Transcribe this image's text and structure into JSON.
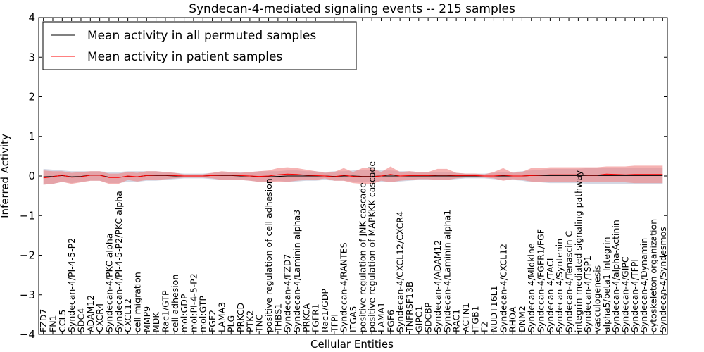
{
  "chart_data": {
    "type": "line",
    "title": "Syndecan-4-mediated signaling events -- 215 samples",
    "xlabel": "Cellular Entities",
    "ylabel": "Inferred Activity",
    "ylim": [
      -4,
      4
    ],
    "yticks": [
      4,
      3,
      2,
      1,
      0,
      -1,
      -2,
      -3,
      -4
    ],
    "ytick_labels": [
      "4",
      "3",
      "2",
      "1",
      "0",
      "−1",
      "−2",
      "−3",
      "−4"
    ],
    "legend_position": "top-left",
    "categories": [
      "FZD7",
      "FN1",
      "CCL5",
      "Syndecan-4/PI-4-5-P2",
      "SDC4",
      "ADAM12",
      "CXCR4",
      "Syndecan-4/PKC alpha",
      "Syndecan-4/PI-4-5-P2/PKC alpha",
      "CXCL12",
      "cell migration",
      "MMP9",
      "MDK",
      "Rac1/GTP",
      "cell adhesion",
      "mol:GDP",
      "mol:PI-4-5-P2",
      "mol:GTP",
      "FGF2",
      "LAMA3",
      "PLG",
      "PRKCD",
      "PTK2",
      "TNC",
      "positive regulation of cell adhesion",
      "THBS1",
      "Syndecan-4/FZD7",
      "Syndecan-4/Laminin alpha3",
      "PRKCA",
      "FGFR1",
      "Rac1/GDP",
      "TFPI",
      "Syndecan-4/RANTES",
      "ITGA5",
      "positive regulation of JNK cascade",
      "positive regulation of MAPKKK cascade",
      "LAMA1",
      "FGF6",
      "Syndecan-4/CXCL12/CXCR4",
      "TNFRSF13B",
      "GIPC1",
      "SDCBP",
      "Syndecan-4/ADAM12",
      "Syndecan-4/Laminin alpha1",
      "RAC1",
      "ACTN1",
      "ITGB1",
      "F2",
      "NUDT16L1",
      "Syndecan-4/CXCL12",
      "RHOA",
      "DNM2",
      "Syndecan-4/Midkine",
      "Syndecan-4/FGFR1/FGF",
      "Syndecan-4/TACI",
      "Syndecan-4/Syntenin",
      "Syndecan-4/Tenascin C",
      "integrin-mediated signaling pathway",
      "Syndecan-4/TSP1",
      "vasculogenesis",
      "alpha5/beta1 Integrin",
      "Syndecan-4/alpha-Actinin",
      "Syndecan-4/GIPC",
      "Syndecan-4/TFPI",
      "Syndecan-4/Dynamin",
      "cytoskeleton organization",
      "Syndecan-4/Syndesmos"
    ],
    "series": [
      {
        "name": "Mean activity in all permuted samples",
        "color": "#000000",
        "band_color": "#b8bdd0",
        "values": [
          -0.02,
          -0.01,
          0.01,
          -0.02,
          -0.01,
          0.02,
          0.02,
          -0.03,
          -0.03,
          -0.02,
          -0.02,
          0.01,
          0.01,
          0.01,
          0,
          0,
          0,
          0,
          0.01,
          0.01,
          0.01,
          0,
          0,
          -0.02,
          -0.02,
          -0.01,
          0,
          0,
          0,
          0,
          0,
          -0.01,
          0,
          0,
          -0.01,
          -0.01,
          0,
          0,
          0,
          0,
          0,
          0,
          0,
          0,
          0,
          0,
          0,
          0,
          0,
          0,
          0,
          0,
          0.01,
          0.01,
          0.01,
          0.01,
          0.01,
          0.01,
          0.01,
          0.01,
          0.01,
          0.01,
          0.01,
          0.01,
          0.01,
          0.01,
          0.01
        ],
        "lower": [
          -0.22,
          -0.2,
          -0.15,
          -0.18,
          -0.15,
          -0.12,
          -0.12,
          -0.18,
          -0.18,
          -0.15,
          -0.15,
          -0.12,
          -0.12,
          -0.1,
          -0.08,
          -0.06,
          -0.06,
          -0.06,
          -0.08,
          -0.1,
          -0.1,
          -0.1,
          -0.12,
          -0.15,
          -0.15,
          -0.12,
          -0.15,
          -0.14,
          -0.12,
          -0.12,
          -0.1,
          -0.12,
          -0.12,
          -0.14,
          -0.16,
          -0.16,
          -0.15,
          -0.15,
          -0.14,
          -0.12,
          -0.1,
          -0.1,
          -0.1,
          -0.1,
          -0.08,
          -0.06,
          -0.06,
          -0.06,
          -0.08,
          -0.1,
          -0.1,
          -0.12,
          -0.16,
          -0.16,
          -0.18,
          -0.18,
          -0.18,
          -0.18,
          -0.2,
          -0.2,
          -0.2,
          -0.2,
          -0.2,
          -0.2,
          -0.2,
          -0.2,
          -0.2
        ],
        "upper": [
          0.18,
          0.16,
          0.14,
          0.12,
          0.12,
          0.12,
          0.12,
          0.1,
          0.1,
          0.12,
          0.12,
          0.12,
          0.12,
          0.1,
          0.08,
          0.06,
          0.06,
          0.06,
          0.08,
          0.1,
          0.1,
          0.1,
          0.1,
          0.12,
          0.12,
          0.12,
          0.14,
          0.14,
          0.12,
          0.12,
          0.1,
          0.12,
          0.12,
          0.14,
          0.16,
          0.16,
          0.14,
          0.14,
          0.12,
          0.12,
          0.1,
          0.1,
          0.1,
          0.1,
          0.08,
          0.06,
          0.06,
          0.06,
          0.08,
          0.1,
          0.1,
          0.12,
          0.14,
          0.16,
          0.18,
          0.18,
          0.18,
          0.18,
          0.2,
          0.2,
          0.2,
          0.2,
          0.2,
          0.2,
          0.2,
          0.2,
          0.2
        ]
      },
      {
        "name": "Mean activity in patient samples",
        "color": "#ff0000",
        "band_color": "#f08080",
        "values": [
          -0.05,
          -0.02,
          0.02,
          -0.03,
          -0.02,
          0.02,
          0.02,
          -0.04,
          -0.04,
          0,
          -0.02,
          0.01,
          0.02,
          0.02,
          0.01,
          0,
          0,
          0,
          0.01,
          0.02,
          0.02,
          0.01,
          0,
          -0.01,
          0,
          0.03,
          0.05,
          0.04,
          0.02,
          0.01,
          0,
          -0.02,
          0.02,
          -0.01,
          -0.02,
          -0.02,
          0,
          0.04,
          0,
          0.01,
          0.01,
          0.01,
          0.02,
          0.02,
          0.01,
          0.01,
          0.01,
          0,
          0,
          0.02,
          0,
          0,
          0.01,
          0.02,
          0.03,
          0.03,
          0.03,
          0.03,
          0.02,
          0.02,
          0.05,
          0.04,
          0.03,
          0.04,
          0.04,
          0.04,
          0.04
        ],
        "lower": [
          -0.22,
          -0.2,
          -0.15,
          -0.2,
          -0.16,
          -0.12,
          -0.12,
          -0.2,
          -0.2,
          -0.1,
          -0.14,
          -0.1,
          -0.1,
          -0.08,
          -0.06,
          -0.04,
          -0.04,
          -0.04,
          -0.06,
          -0.1,
          -0.1,
          -0.1,
          -0.12,
          -0.15,
          -0.15,
          -0.16,
          -0.15,
          -0.12,
          -0.1,
          -0.1,
          -0.06,
          -0.12,
          -0.12,
          -0.18,
          -0.2,
          -0.2,
          -0.12,
          -0.16,
          -0.12,
          -0.1,
          -0.08,
          -0.08,
          -0.1,
          -0.1,
          -0.06,
          -0.04,
          -0.04,
          -0.04,
          -0.06,
          -0.12,
          -0.08,
          -0.1,
          -0.14,
          -0.15,
          -0.16,
          -0.16,
          -0.16,
          -0.16,
          -0.15,
          -0.15,
          -0.16,
          -0.16,
          -0.16,
          -0.18,
          -0.18,
          -0.18,
          -0.18
        ],
        "upper": [
          0.14,
          0.12,
          0.12,
          0.08,
          0.1,
          0.12,
          0.12,
          0.06,
          0.06,
          0.1,
          0.08,
          0.12,
          0.12,
          0.1,
          0.08,
          0.04,
          0.04,
          0.04,
          0.08,
          0.12,
          0.1,
          0.08,
          0.1,
          0.12,
          0.14,
          0.2,
          0.22,
          0.2,
          0.16,
          0.12,
          0.08,
          0.1,
          0.2,
          0.1,
          0.2,
          0.2,
          0.1,
          0.24,
          0.1,
          0.12,
          0.1,
          0.1,
          0.18,
          0.18,
          0.08,
          0.06,
          0.06,
          0.04,
          0.1,
          0.2,
          0.08,
          0.1,
          0.2,
          0.2,
          0.22,
          0.22,
          0.22,
          0.22,
          0.22,
          0.22,
          0.24,
          0.24,
          0.24,
          0.26,
          0.26,
          0.26,
          0.26
        ]
      }
    ]
  }
}
